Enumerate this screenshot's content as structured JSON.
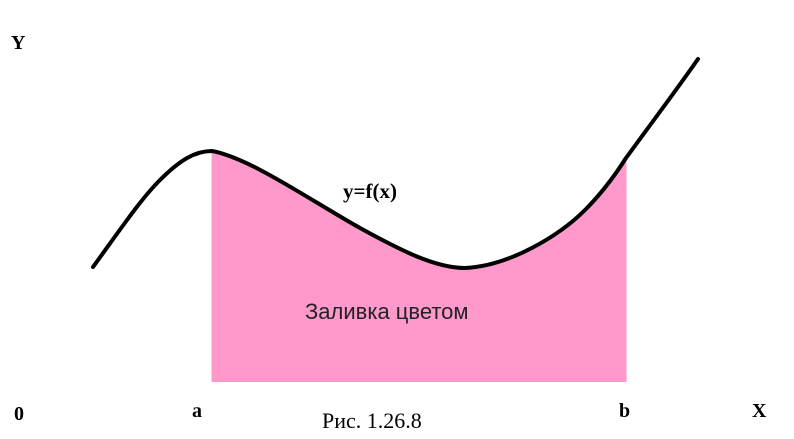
{
  "labels": {
    "y_axis": "Y",
    "x_axis": "X",
    "origin": "0",
    "a": "a",
    "b": "b",
    "function": "y=f(x)",
    "fill_label": "Заливка цветом",
    "caption": "Рис. 1.26.8"
  },
  "colors": {
    "fill": "#ff99cc",
    "curve": "#000000",
    "background": "#ffffff"
  }
}
